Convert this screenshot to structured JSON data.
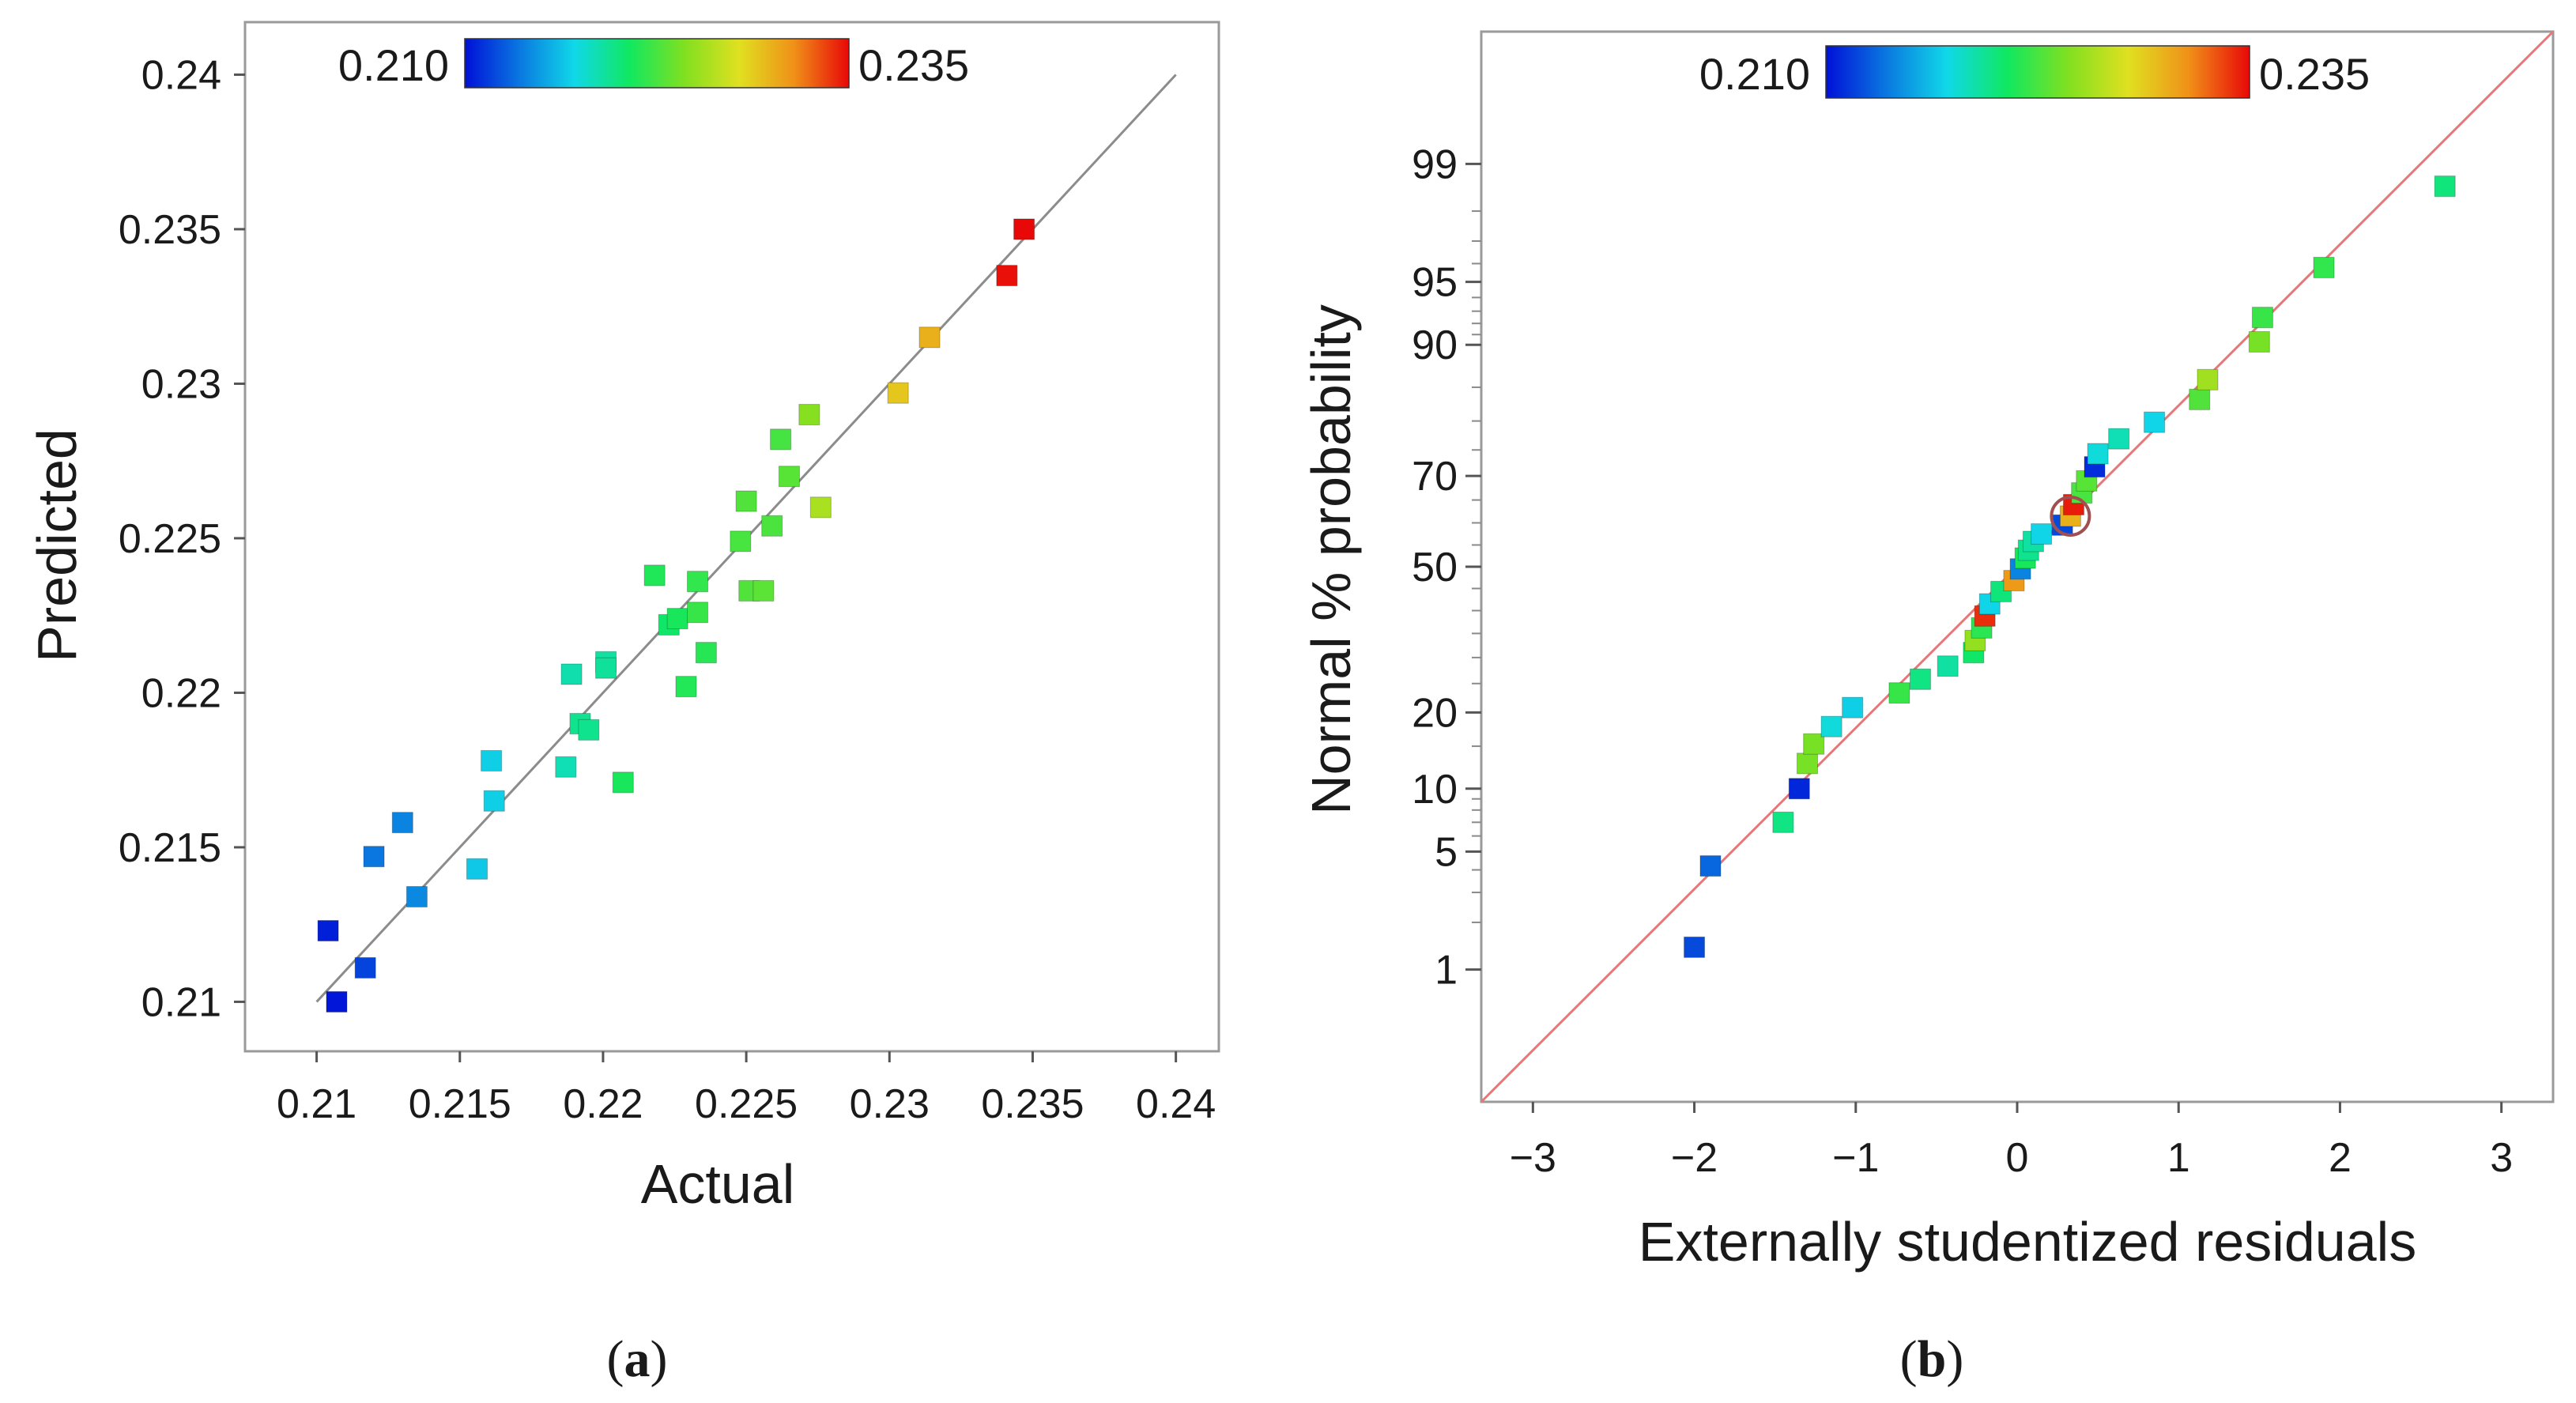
{
  "colors": {
    "scale": [
      "#0010d8",
      "#0a78e0",
      "#10d8e8",
      "#10e860",
      "#80e020",
      "#e0e020",
      "#f09018",
      "#e80808"
    ],
    "fit_line_a": "#8c8c8c",
    "fit_line_b": "#e87878",
    "highlight_ring": "#a05050"
  },
  "panel_labels": {
    "a": {
      "open": "(",
      "letter": "a",
      "close": ")"
    },
    "b": {
      "open": "(",
      "letter": "b",
      "close": ")"
    }
  },
  "chart_data": [
    {
      "id": "a",
      "type": "scatter",
      "xlabel": "Actual",
      "ylabel": "Predicted",
      "xlim": [
        0.2075,
        0.2415
      ],
      "ylim": [
        0.2084,
        0.2417
      ],
      "xticks": [
        {
          "v": 0.21,
          "label": "0.21"
        },
        {
          "v": 0.215,
          "label": "0.215"
        },
        {
          "v": 0.22,
          "label": "0.22"
        },
        {
          "v": 0.225,
          "label": "0.225"
        },
        {
          "v": 0.23,
          "label": "0.23"
        },
        {
          "v": 0.235,
          "label": "0.235"
        },
        {
          "v": 0.24,
          "label": "0.24"
        }
      ],
      "yticks": [
        {
          "v": 0.21,
          "label": "0.21"
        },
        {
          "v": 0.215,
          "label": "0.215"
        },
        {
          "v": 0.22,
          "label": "0.22"
        },
        {
          "v": 0.225,
          "label": "0.225"
        },
        {
          "v": 0.23,
          "label": "0.23"
        },
        {
          "v": 0.235,
          "label": "0.235"
        },
        {
          "v": 0.24,
          "label": "0.24"
        }
      ],
      "reference_line": [
        [
          0.21,
          0.21
        ],
        [
          0.24,
          0.24
        ]
      ],
      "colorbar": {
        "min": 0.21,
        "max": 0.235,
        "min_label": "0.210",
        "max_label": "0.235"
      },
      "points": [
        {
          "x": 0.2104,
          "y": 0.2123,
          "c": 0.2105
        },
        {
          "x": 0.2107,
          "y": 0.21,
          "c": 0.2102
        },
        {
          "x": 0.2117,
          "y": 0.2111,
          "c": 0.2118
        },
        {
          "x": 0.212,
          "y": 0.2147,
          "c": 0.2135
        },
        {
          "x": 0.213,
          "y": 0.2158,
          "c": 0.214
        },
        {
          "x": 0.2135,
          "y": 0.2134,
          "c": 0.2142
        },
        {
          "x": 0.2156,
          "y": 0.2143,
          "c": 0.2165
        },
        {
          "x": 0.2161,
          "y": 0.2178,
          "c": 0.2168
        },
        {
          "x": 0.2162,
          "y": 0.2165,
          "c": 0.2168
        },
        {
          "x": 0.2187,
          "y": 0.2176,
          "c": 0.2185
        },
        {
          "x": 0.2189,
          "y": 0.2206,
          "c": 0.2187
        },
        {
          "x": 0.2192,
          "y": 0.219,
          "c": 0.2195
        },
        {
          "x": 0.2195,
          "y": 0.2188,
          "c": 0.2195
        },
        {
          "x": 0.2201,
          "y": 0.221,
          "c": 0.219
        },
        {
          "x": 0.2201,
          "y": 0.2208,
          "c": 0.2192
        },
        {
          "x": 0.2207,
          "y": 0.2171,
          "c": 0.221
        },
        {
          "x": 0.2218,
          "y": 0.2238,
          "c": 0.2212
        },
        {
          "x": 0.2223,
          "y": 0.2222,
          "c": 0.2205
        },
        {
          "x": 0.2226,
          "y": 0.2224,
          "c": 0.221
        },
        {
          "x": 0.2229,
          "y": 0.2202,
          "c": 0.2213
        },
        {
          "x": 0.2233,
          "y": 0.2236,
          "c": 0.2218
        },
        {
          "x": 0.2233,
          "y": 0.2226,
          "c": 0.222
        },
        {
          "x": 0.2236,
          "y": 0.2213,
          "c": 0.2214
        },
        {
          "x": 0.2248,
          "y": 0.2249,
          "c": 0.2225
        },
        {
          "x": 0.225,
          "y": 0.2262,
          "c": 0.2228
        },
        {
          "x": 0.2251,
          "y": 0.2233,
          "c": 0.2228
        },
        {
          "x": 0.2256,
          "y": 0.2233,
          "c": 0.2231
        },
        {
          "x": 0.2259,
          "y": 0.2254,
          "c": 0.2226
        },
        {
          "x": 0.2262,
          "y": 0.2282,
          "c": 0.2224
        },
        {
          "x": 0.2265,
          "y": 0.227,
          "c": 0.223
        },
        {
          "x": 0.2272,
          "y": 0.229,
          "c": 0.2245
        },
        {
          "x": 0.2276,
          "y": 0.226,
          "c": 0.2258
        },
        {
          "x": 0.2303,
          "y": 0.2297,
          "c": 0.229
        },
        {
          "x": 0.2314,
          "y": 0.2315,
          "c": 0.23
        },
        {
          "x": 0.2341,
          "y": 0.2335,
          "c": 0.2348
        },
        {
          "x": 0.2347,
          "y": 0.235,
          "c": 0.235
        }
      ]
    },
    {
      "id": "b",
      "type": "scatter",
      "xlabel": "Externally studentized residuals",
      "ylabel": "Normal % probability",
      "y_scale": "normal-probability",
      "xlim": [
        -3.32,
        3.32
      ],
      "ylim": [
        0.1,
        99.9
      ],
      "xticks": [
        {
          "v": -3,
          "label": "−3"
        },
        {
          "v": -2,
          "label": "−2"
        },
        {
          "v": -1,
          "label": "−1"
        },
        {
          "v": 0,
          "label": "0"
        },
        {
          "v": 1,
          "label": "1"
        },
        {
          "v": 2,
          "label": "2"
        },
        {
          "v": 3,
          "label": "3"
        }
      ],
      "yticks": [
        {
          "v": 1,
          "label": "1"
        },
        {
          "v": 5,
          "label": "5"
        },
        {
          "v": 10,
          "label": "10"
        },
        {
          "v": 20,
          "label": "20"
        },
        {
          "v": 50,
          "label": "50"
        },
        {
          "v": 70,
          "label": "70"
        },
        {
          "v": 90,
          "label": "90"
        },
        {
          "v": 95,
          "label": "95"
        },
        {
          "v": 99,
          "label": "99"
        }
      ],
      "minor_yticks": [
        2,
        3,
        4,
        6,
        7,
        8,
        9,
        15,
        25,
        30,
        35,
        40,
        45,
        55,
        60,
        65,
        75,
        80,
        85,
        91,
        92,
        93,
        94,
        96,
        97,
        98
      ],
      "reference_line": [
        [
          -3.32,
          0.1
        ],
        [
          3.32,
          99.9
        ]
      ],
      "colorbar": {
        "min": 0.21,
        "max": 0.235,
        "min_label": "0.210",
        "max_label": "0.235"
      },
      "highlight_point": {
        "x": 0.33,
        "y": 61.5
      },
      "points": [
        {
          "x": -2.0,
          "y": 1.4,
          "c": 0.212
        },
        {
          "x": -1.9,
          "y": 4.2,
          "c": 0.213
        },
        {
          "x": -1.45,
          "y": 7.0,
          "c": 0.2198
        },
        {
          "x": -1.35,
          "y": 10.0,
          "c": 0.2108
        },
        {
          "x": -1.3,
          "y": 12.8,
          "c": 0.224
        },
        {
          "x": -1.26,
          "y": 15.3,
          "c": 0.224
        },
        {
          "x": -1.15,
          "y": 17.8,
          "c": 0.2175
        },
        {
          "x": -1.02,
          "y": 20.8,
          "c": 0.2168
        },
        {
          "x": -0.73,
          "y": 23.3,
          "c": 0.222
        },
        {
          "x": -0.6,
          "y": 25.8,
          "c": 0.2198
        },
        {
          "x": -0.43,
          "y": 28.3,
          "c": 0.219
        },
        {
          "x": -0.27,
          "y": 31.0,
          "c": 0.2205
        },
        {
          "x": -0.26,
          "y": 33.5,
          "c": 0.225
        },
        {
          "x": -0.22,
          "y": 36.2,
          "c": 0.2215
        },
        {
          "x": -0.2,
          "y": 38.8,
          "c": 0.234
        },
        {
          "x": -0.17,
          "y": 41.5,
          "c": 0.217
        },
        {
          "x": -0.1,
          "y": 44.3,
          "c": 0.22
        },
        {
          "x": -0.02,
          "y": 46.8,
          "c": 0.231
        },
        {
          "x": 0.02,
          "y": 49.5,
          "c": 0.214
        },
        {
          "x": 0.05,
          "y": 52.0,
          "c": 0.221
        },
        {
          "x": 0.07,
          "y": 53.8,
          "c": 0.2195
        },
        {
          "x": 0.1,
          "y": 55.8,
          "c": 0.219
        },
        {
          "x": 0.15,
          "y": 57.5,
          "c": 0.217
        },
        {
          "x": 0.28,
          "y": 59.5,
          "c": 0.212
        },
        {
          "x": 0.33,
          "y": 61.5,
          "c": 0.23
        },
        {
          "x": 0.35,
          "y": 64.0,
          "c": 0.2345
        },
        {
          "x": 0.4,
          "y": 66.5,
          "c": 0.2225
        },
        {
          "x": 0.43,
          "y": 69.0,
          "c": 0.223
        },
        {
          "x": 0.48,
          "y": 71.8,
          "c": 0.211
        },
        {
          "x": 0.5,
          "y": 74.3,
          "c": 0.2175
        },
        {
          "x": 0.63,
          "y": 77.0,
          "c": 0.2185
        },
        {
          "x": 0.85,
          "y": 79.8,
          "c": 0.217
        },
        {
          "x": 1.13,
          "y": 83.3,
          "c": 0.2228
        },
        {
          "x": 1.18,
          "y": 86.0,
          "c": 0.2255
        },
        {
          "x": 1.5,
          "y": 90.3,
          "c": 0.224
        },
        {
          "x": 1.52,
          "y": 92.5,
          "c": 0.222
        },
        {
          "x": 1.9,
          "y": 95.8,
          "c": 0.2218
        },
        {
          "x": 2.65,
          "y": 98.6,
          "c": 0.22
        }
      ]
    }
  ]
}
